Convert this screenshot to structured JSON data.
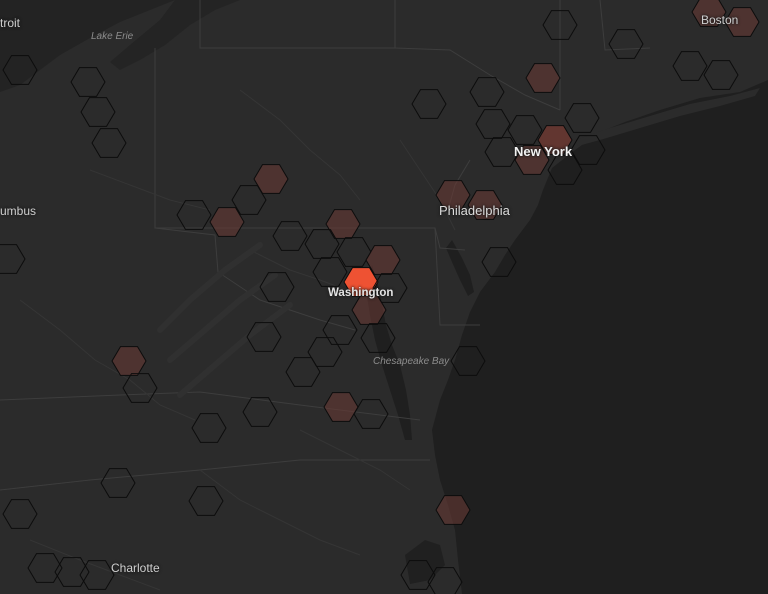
{
  "map": {
    "cities": [
      {
        "id": "detroit",
        "label": "troit"
      },
      {
        "id": "boston",
        "label": "Boston"
      },
      {
        "id": "new-york",
        "label": "New York"
      },
      {
        "id": "philadelphia",
        "label": "Philadelphia"
      },
      {
        "id": "washington",
        "label": "Washington"
      },
      {
        "id": "columbus",
        "label": "umbus"
      },
      {
        "id": "charlotte",
        "label": "Charlotte"
      }
    ],
    "water_labels": [
      {
        "id": "lake-erie",
        "label": "Lake Erie"
      },
      {
        "id": "chesapeake-bay",
        "label": "Chesapeake Bay"
      }
    ],
    "colors": {
      "land": "#2b2b2b",
      "ocean": "#1f1f1f",
      "lake": "#232323",
      "hex_outline": "#0c0c0c",
      "hex_low": "#6b3a34",
      "hex_mid": "#7a3c33",
      "hex_high": "#ee5233"
    }
  }
}
